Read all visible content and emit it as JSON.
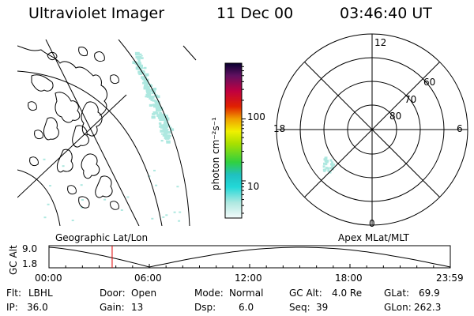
{
  "header": {
    "instrument": "Ultraviolet Imager",
    "date": "11 Dec 00",
    "time": "03:46:40 UT"
  },
  "colorbar": {
    "unit_label": "photon cm⁻²s⁻¹",
    "ticks": [
      {
        "label": "100",
        "value": 100
      },
      {
        "label": "10",
        "value": 10
      }
    ],
    "scale": "log"
  },
  "left_map": {
    "label": "Geographic Lat/Lon"
  },
  "polar_plot": {
    "label": "Apex MLat/MLT",
    "mlt_labels": [
      "12",
      "18",
      "6",
      "0"
    ],
    "lat_labels": [
      "60",
      "70",
      "80"
    ]
  },
  "altitude_plot": {
    "axis_title": "GC Alt",
    "y_ticks": [
      "9.0",
      "1.8"
    ],
    "x_ticks": [
      "00:00",
      "06:00",
      "12:00",
      "18:00",
      "23:59"
    ],
    "marker_time": "03:46:40"
  },
  "info": {
    "row1": [
      {
        "label": "Flt:",
        "value": "LBHL"
      },
      {
        "label": "Door:",
        "value": "Open"
      },
      {
        "label": "Mode:",
        "value": "Normal"
      },
      {
        "label": "GC Alt:",
        "value": "4.0 Re"
      },
      {
        "label": "GLat:",
        "value": "69.9"
      }
    ],
    "row2": [
      {
        "label": "IP:",
        "value": "36.0"
      },
      {
        "label": "Gain:",
        "value": "13"
      },
      {
        "label": "Dsp:",
        "value": "6.0"
      },
      {
        "label": "Seq:",
        "value": "39"
      },
      {
        "label": "GLon:",
        "value": "262.3"
      }
    ]
  },
  "colors": {
    "aurora": "#aee8e0",
    "marker": "#e00000"
  }
}
